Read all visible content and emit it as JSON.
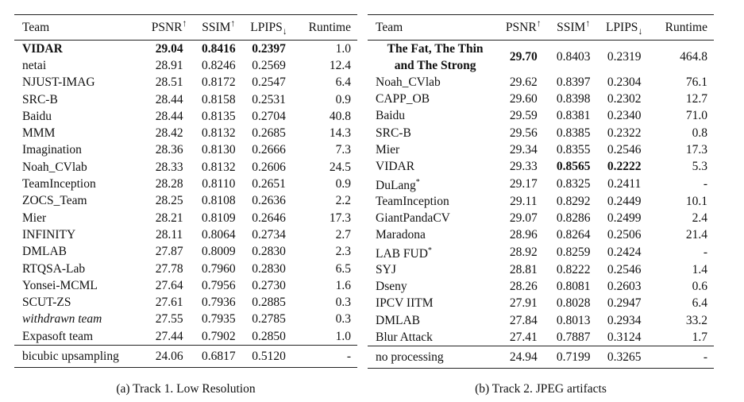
{
  "track1": {
    "headers": {
      "team": "Team",
      "psnr": "PSNR",
      "ssim": "SSIM",
      "lpips": "LPIPS",
      "runtime": "Runtime",
      "up": "↑",
      "down": "↓"
    },
    "rows": [
      {
        "team": "VIDAR",
        "psnr": "29.04",
        "ssim": "0.8416",
        "lpips": "0.2397",
        "runtime": "1.0"
      },
      {
        "team": "netai",
        "psnr": "28.91",
        "ssim": "0.8246",
        "lpips": "0.2569",
        "runtime": "12.4"
      },
      {
        "team": "NJUST-IMAG",
        "psnr": "28.51",
        "ssim": "0.8172",
        "lpips": "0.2547",
        "runtime": "6.4"
      },
      {
        "team": "SRC-B",
        "psnr": "28.44",
        "ssim": "0.8158",
        "lpips": "0.2531",
        "runtime": "0.9"
      },
      {
        "team": "Baidu",
        "psnr": "28.44",
        "ssim": "0.8135",
        "lpips": "0.2704",
        "runtime": "40.8"
      },
      {
        "team": "MMM",
        "psnr": "28.42",
        "ssim": "0.8132",
        "lpips": "0.2685",
        "runtime": "14.3"
      },
      {
        "team": "Imagination",
        "psnr": "28.36",
        "ssim": "0.8130",
        "lpips": "0.2666",
        "runtime": "7.3"
      },
      {
        "team": "Noah_CVlab",
        "psnr": "28.33",
        "ssim": "0.8132",
        "lpips": "0.2606",
        "runtime": "24.5"
      },
      {
        "team": "TeamInception",
        "psnr": "28.28",
        "ssim": "0.8110",
        "lpips": "0.2651",
        "runtime": "0.9"
      },
      {
        "team": "ZOCS_Team",
        "psnr": "28.25",
        "ssim": "0.8108",
        "lpips": "0.2636",
        "runtime": "2.2"
      },
      {
        "team": "Mier",
        "psnr": "28.21",
        "ssim": "0.8109",
        "lpips": "0.2646",
        "runtime": "17.3"
      },
      {
        "team": "INFINITY",
        "psnr": "28.11",
        "ssim": "0.8064",
        "lpips": "0.2734",
        "runtime": "2.7"
      },
      {
        "team": "DMLAB",
        "psnr": "27.87",
        "ssim": "0.8009",
        "lpips": "0.2830",
        "runtime": "2.3"
      },
      {
        "team": "RTQSA-Lab",
        "psnr": "27.78",
        "ssim": "0.7960",
        "lpips": "0.2830",
        "runtime": "6.5"
      },
      {
        "team": "Yonsei-MCML",
        "psnr": "27.64",
        "ssim": "0.7956",
        "lpips": "0.2730",
        "runtime": "1.6"
      },
      {
        "team": "SCUT-ZS",
        "psnr": "27.61",
        "ssim": "0.7936",
        "lpips": "0.2885",
        "runtime": "0.3"
      },
      {
        "team": "withdrawn team",
        "psnr": "27.55",
        "ssim": "0.7935",
        "lpips": "0.2785",
        "runtime": "0.3"
      },
      {
        "team": "Expasoft team",
        "psnr": "27.44",
        "ssim": "0.7902",
        "lpips": "0.2850",
        "runtime": "1.0"
      }
    ],
    "baseline": {
      "team": "bicubic upsampling",
      "psnr": "24.06",
      "ssim": "0.6817",
      "lpips": "0.5120",
      "runtime": "-"
    },
    "caption": "(a) Track 1. Low Resolution"
  },
  "track2": {
    "headers": {
      "team": "Team",
      "psnr": "PSNR",
      "ssim": "SSIM",
      "lpips": "LPIPS",
      "runtime": "Runtime",
      "up": "↑",
      "down": "↓"
    },
    "first": {
      "team_line1": "The Fat, The Thin",
      "team_line2": "and The Strong",
      "psnr": "29.70",
      "ssim": "0.8403",
      "lpips": "0.2319",
      "runtime": "464.8"
    },
    "rows": [
      {
        "team": "Noah_CVlab",
        "psnr": "29.62",
        "ssim": "0.8397",
        "lpips": "0.2304",
        "runtime": "76.1"
      },
      {
        "team": "CAPP_OB",
        "psnr": "29.60",
        "ssim": "0.8398",
        "lpips": "0.2302",
        "runtime": "12.7"
      },
      {
        "team": "Baidu",
        "psnr": "29.59",
        "ssim": "0.8381",
        "lpips": "0.2340",
        "runtime": "71.0"
      },
      {
        "team": "SRC-B",
        "psnr": "29.56",
        "ssim": "0.8385",
        "lpips": "0.2322",
        "runtime": "0.8"
      },
      {
        "team": "Mier",
        "psnr": "29.34",
        "ssim": "0.8355",
        "lpips": "0.2546",
        "runtime": "17.3"
      },
      {
        "team": "VIDAR",
        "psnr": "29.33",
        "ssim": "0.8565",
        "lpips": "0.2222",
        "runtime": "5.3"
      },
      {
        "team": "DuLang",
        "star": "*",
        "psnr": "29.17",
        "ssim": "0.8325",
        "lpips": "0.2411",
        "runtime": "-"
      },
      {
        "team": "TeamInception",
        "psnr": "29.11",
        "ssim": "0.8292",
        "lpips": "0.2449",
        "runtime": "10.1"
      },
      {
        "team": "GiantPandaCV",
        "psnr": "29.07",
        "ssim": "0.8286",
        "lpips": "0.2499",
        "runtime": "2.4"
      },
      {
        "team": "Maradona",
        "psnr": "28.96",
        "ssim": "0.8264",
        "lpips": "0.2506",
        "runtime": "21.4"
      },
      {
        "team": "LAB FUD",
        "star": "*",
        "psnr": "28.92",
        "ssim": "0.8259",
        "lpips": "0.2424",
        "runtime": "-"
      },
      {
        "team": "SYJ",
        "psnr": "28.81",
        "ssim": "0.8222",
        "lpips": "0.2546",
        "runtime": "1.4"
      },
      {
        "team": "Dseny",
        "psnr": "28.26",
        "ssim": "0.8081",
        "lpips": "0.2603",
        "runtime": "0.6"
      },
      {
        "team": "IPCV IITM",
        "psnr": "27.91",
        "ssim": "0.8028",
        "lpips": "0.2947",
        "runtime": "6.4"
      },
      {
        "team": "DMLAB",
        "psnr": "27.84",
        "ssim": "0.8013",
        "lpips": "0.2934",
        "runtime": "33.2"
      },
      {
        "team": "Blur Attack",
        "psnr": "27.41",
        "ssim": "0.7887",
        "lpips": "0.3124",
        "runtime": "1.7"
      }
    ],
    "baseline": {
      "team": "no processing",
      "psnr": "24.94",
      "ssim": "0.7199",
      "lpips": "0.3265",
      "runtime": "-"
    },
    "caption": "(b) Track 2. JPEG artifacts"
  }
}
